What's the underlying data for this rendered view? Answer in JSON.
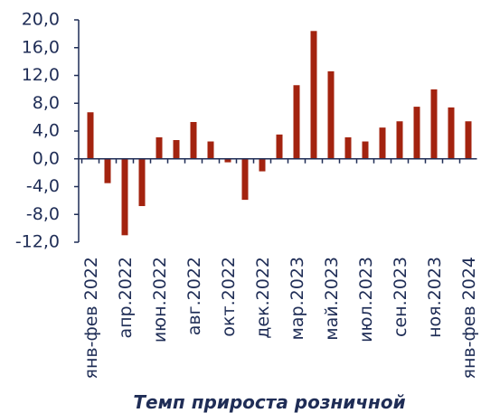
{
  "chart_data": {
    "type": "bar",
    "title": "Темп прироста розничной",
    "categories": [
      "янв-фев 2022",
      null,
      "апр.2022",
      null,
      "июн.2022",
      null,
      "авг.2022",
      null,
      "окт.2022",
      null,
      "дек.2022",
      null,
      "мар.2023",
      null,
      "май.2023",
      null,
      "июл.2023",
      null,
      "сен.2023",
      null,
      "ноя.2023",
      null,
      "янв-фев 2024"
    ],
    "values": [
      6.7,
      -3.5,
      -11.0,
      -6.8,
      3.1,
      2.7,
      5.3,
      2.5,
      -0.5,
      -5.9,
      -1.8,
      3.5,
      10.6,
      18.4,
      12.6,
      3.1,
      2.5,
      4.5,
      5.4,
      7.5,
      10.0,
      7.4,
      5.4
    ],
    "color": "#a3230f",
    "ylim": [
      -12,
      20
    ],
    "yticks": [
      {
        "value": -12,
        "label": "-12,0"
      },
      {
        "value": -8,
        "label": "-8,0"
      },
      {
        "value": -4,
        "label": "-4,0"
      },
      {
        "value": 0,
        "label": "0,0"
      },
      {
        "value": 4,
        "label": "4,0"
      },
      {
        "value": 8,
        "label": "8,0"
      },
      {
        "value": 12,
        "label": "12,0"
      },
      {
        "value": 16,
        "label": "16,0"
      },
      {
        "value": 20,
        "label": "20,0"
      }
    ]
  }
}
